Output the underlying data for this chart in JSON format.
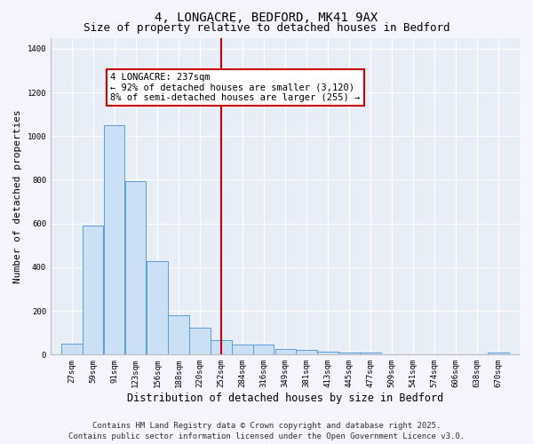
{
  "title": "4, LONGACRE, BEDFORD, MK41 9AX",
  "subtitle": "Size of property relative to detached houses in Bedford",
  "xlabel": "Distribution of detached houses by size in Bedford",
  "ylabel": "Number of detached properties",
  "bar_color": "#cce0f5",
  "bar_edge_color": "#5b9bd5",
  "background_color": "#e8eef8",
  "fig_background": "#f5f5ff",
  "grid_color": "#ffffff",
  "bins": [
    27,
    59,
    91,
    123,
    156,
    188,
    220,
    252,
    284,
    316,
    349,
    381,
    413,
    445,
    477,
    509,
    541,
    574,
    606,
    638,
    670
  ],
  "values": [
    50,
    590,
    1050,
    795,
    430,
    180,
    125,
    65,
    45,
    45,
    25,
    20,
    15,
    10,
    10,
    0,
    0,
    0,
    0,
    0,
    10
  ],
  "red_line_x": 252,
  "red_line_color": "#cc0000",
  "annotation_line1": "4 LONGACRE: 237sqm",
  "annotation_line2": "← 92% of detached houses are smaller (3,120)",
  "annotation_line3": "8% of semi-detached houses are larger (255) →",
  "annotation_box_color": "#cc0000",
  "ylim": [
    0,
    1450
  ],
  "yticks": [
    0,
    200,
    400,
    600,
    800,
    1000,
    1200,
    1400
  ],
  "footer_line1": "Contains HM Land Registry data © Crown copyright and database right 2025.",
  "footer_line2": "Contains public sector information licensed under the Open Government Licence v3.0.",
  "title_fontsize": 10,
  "subtitle_fontsize": 9,
  "xlabel_fontsize": 8.5,
  "ylabel_fontsize": 8,
  "tick_fontsize": 6.5,
  "footer_fontsize": 6.5,
  "annot_fontsize": 7.5
}
